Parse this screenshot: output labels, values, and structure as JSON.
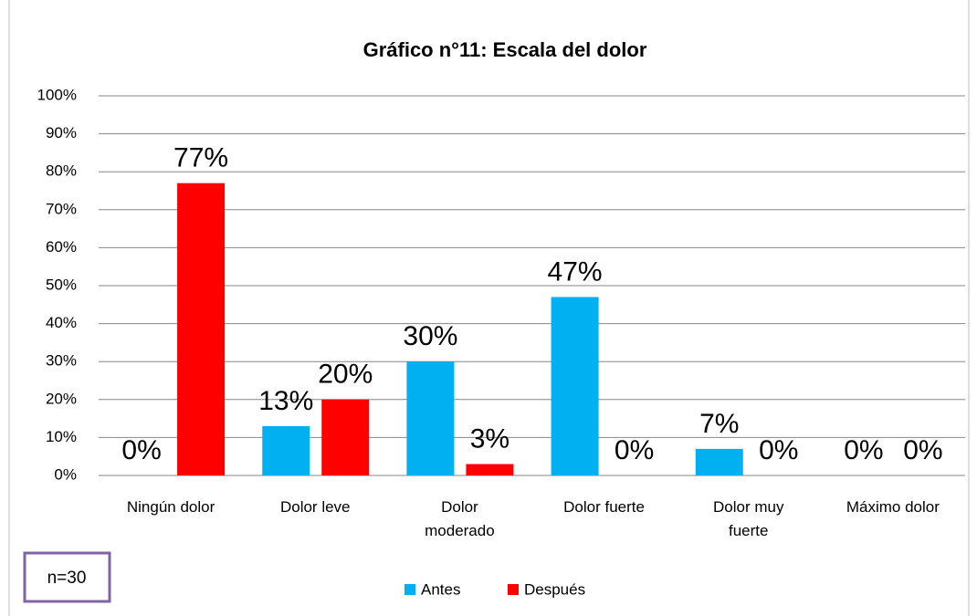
{
  "chart_data": {
    "type": "bar",
    "title": "Gráfico n°11: Escala del dolor",
    "categories": [
      "Ningún dolor",
      "Dolor leve",
      "Dolor moderado",
      "Dolor fuerte",
      "Dolor muy fuerte",
      "Máximo dolor"
    ],
    "series": [
      {
        "name": "Antes",
        "color": "#00b0f0",
        "values": [
          0,
          13,
          30,
          47,
          7,
          0
        ],
        "value_labels": [
          "0%",
          "13%",
          "30%",
          "47%",
          "7%",
          "0%"
        ]
      },
      {
        "name": "Después",
        "color": "#ff0000",
        "values": [
          77,
          20,
          3,
          0,
          0,
          0
        ],
        "value_labels": [
          "77%",
          "20%",
          "3%",
          "0%",
          "0%",
          "0%"
        ]
      }
    ],
    "ylim": [
      0,
      100
    ],
    "yticks": [
      {
        "value": 0,
        "label": "0%"
      },
      {
        "value": 10,
        "label": "10%"
      },
      {
        "value": 20,
        "label": "20%"
      },
      {
        "value": 30,
        "label": "30%"
      },
      {
        "value": 40,
        "label": "40%"
      },
      {
        "value": 50,
        "label": "50%"
      },
      {
        "value": 60,
        "label": "60%"
      },
      {
        "value": 70,
        "label": "70%"
      },
      {
        "value": 80,
        "label": "80%"
      },
      {
        "value": 90,
        "label": "90%"
      },
      {
        "value": 100,
        "label": "100%"
      }
    ],
    "grid": true,
    "legend": "bottom",
    "annotation": "n=30"
  }
}
